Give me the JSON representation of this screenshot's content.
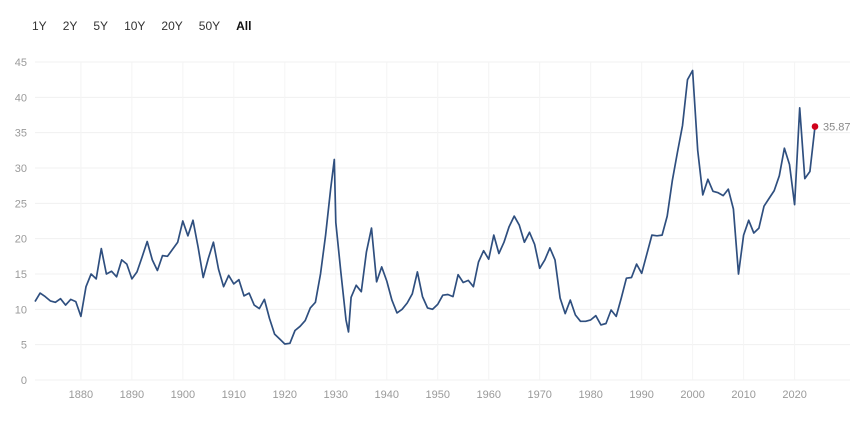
{
  "range_buttons": [
    {
      "label": "1Y",
      "active": false
    },
    {
      "label": "2Y",
      "active": false
    },
    {
      "label": "5Y",
      "active": false
    },
    {
      "label": "10Y",
      "active": false
    },
    {
      "label": "20Y",
      "active": false
    },
    {
      "label": "50Y",
      "active": false
    },
    {
      "label": "All",
      "active": true
    }
  ],
  "chart_data": {
    "type": "line",
    "title": "",
    "xlabel": "",
    "ylabel": "",
    "xlim": [
      1871,
      2024
    ],
    "ylim": [
      0,
      45
    ],
    "y_ticks": [
      0,
      5,
      10,
      15,
      20,
      25,
      30,
      35,
      40,
      45
    ],
    "x_ticks": [
      1880,
      1890,
      1900,
      1910,
      1920,
      1930,
      1940,
      1950,
      1960,
      1970,
      1980,
      1990,
      2000,
      2010,
      2020
    ],
    "grid": true,
    "line_color": "#2f4f7f",
    "marker_color": "#d0021b",
    "last_value_label": "35.87",
    "series": [
      {
        "values_x": [
          1871,
          1872,
          1873,
          1874,
          1875,
          1876,
          1877,
          1878,
          1879,
          1880,
          1881,
          1882,
          1883,
          1884,
          1885,
          1886,
          1887,
          1888,
          1889,
          1890,
          1891,
          1892,
          1893,
          1894,
          1895,
          1896,
          1897,
          1898,
          1899,
          1900,
          1901,
          1902,
          1903,
          1904,
          1905,
          1906,
          1907,
          1908,
          1909,
          1910,
          1911,
          1912,
          1913,
          1914,
          1915,
          1916,
          1917,
          1918,
          1919,
          1920,
          1921,
          1922,
          1923,
          1924,
          1925,
          1926,
          1927,
          1928,
          1929,
          1929.7,
          1930,
          1931,
          1932,
          1932.5,
          1933,
          1934,
          1935,
          1936,
          1937,
          1938,
          1939,
          1940,
          1941,
          1942,
          1943,
          1944,
          1945,
          1946,
          1947,
          1948,
          1949,
          1950,
          1951,
          1952,
          1953,
          1954,
          1955,
          1956,
          1957,
          1958,
          1959,
          1960,
          1961,
          1962,
          1963,
          1964,
          1965,
          1966,
          1967,
          1968,
          1969,
          1970,
          1971,
          1972,
          1973,
          1974,
          1975,
          1976,
          1977,
          1978,
          1979,
          1980,
          1981,
          1982,
          1983,
          1984,
          1985,
          1986,
          1987,
          1988,
          1989,
          1990,
          1991,
          1992,
          1993,
          1994,
          1995,
          1996,
          1997,
          1998,
          1999,
          2000,
          2001,
          2002,
          2003,
          2004,
          2005,
          2006,
          2007,
          2008,
          2009,
          2010,
          2011,
          2012,
          2013,
          2014,
          2015,
          2016,
          2017,
          2018,
          2019,
          2020,
          2021,
          2022,
          2023,
          2024
        ],
        "values_y": [
          11.1,
          12.3,
          11.8,
          11.2,
          11.0,
          11.5,
          10.6,
          11.4,
          11.1,
          9.0,
          13.2,
          15.0,
          14.3,
          18.6,
          15.0,
          15.4,
          14.6,
          17.0,
          16.4,
          14.3,
          15.3,
          17.4,
          19.6,
          17.0,
          15.5,
          17.6,
          17.5,
          18.5,
          19.5,
          22.5,
          20.4,
          22.6,
          18.8,
          14.5,
          17.2,
          19.5,
          15.7,
          13.2,
          14.8,
          13.6,
          14.2,
          11.9,
          12.3,
          10.6,
          10.1,
          11.4,
          8.7,
          6.5,
          5.8,
          5.1,
          5.2,
          7.0,
          7.6,
          8.4,
          10.2,
          11.0,
          15.0,
          20.5,
          27.1,
          31.2,
          22.3,
          15.2,
          8.5,
          6.8,
          11.7,
          13.4,
          12.5,
          18.1,
          21.5,
          13.9,
          16.0,
          14.0,
          11.3,
          9.5,
          10.0,
          10.9,
          12.2,
          15.3,
          11.8,
          10.2,
          10.0,
          10.7,
          12.0,
          12.1,
          11.8,
          14.9,
          13.8,
          14.1,
          13.2,
          16.7,
          18.3,
          17.1,
          20.5,
          17.9,
          19.5,
          21.7,
          23.2,
          21.9,
          19.5,
          20.9,
          19.2,
          15.8,
          17.0,
          18.7,
          17.0,
          11.6,
          9.4,
          11.3,
          9.2,
          8.3,
          8.3,
          8.5,
          9.1,
          7.8,
          8.0,
          9.9,
          9.0,
          11.6,
          14.4,
          14.5,
          16.4,
          15.1,
          17.8,
          20.5,
          20.4,
          20.5,
          23.2,
          28.2,
          32.2,
          36.0,
          42.5,
          43.8,
          32.5,
          26.2,
          28.4,
          26.7,
          26.5,
          26.1,
          27.0,
          24.2,
          15.0,
          20.5,
          22.6,
          20.8,
          21.5,
          24.6,
          25.7,
          26.8,
          28.9,
          32.8,
          30.5,
          24.8,
          38.5,
          28.5,
          29.5,
          35.87
        ]
      }
    ]
  }
}
